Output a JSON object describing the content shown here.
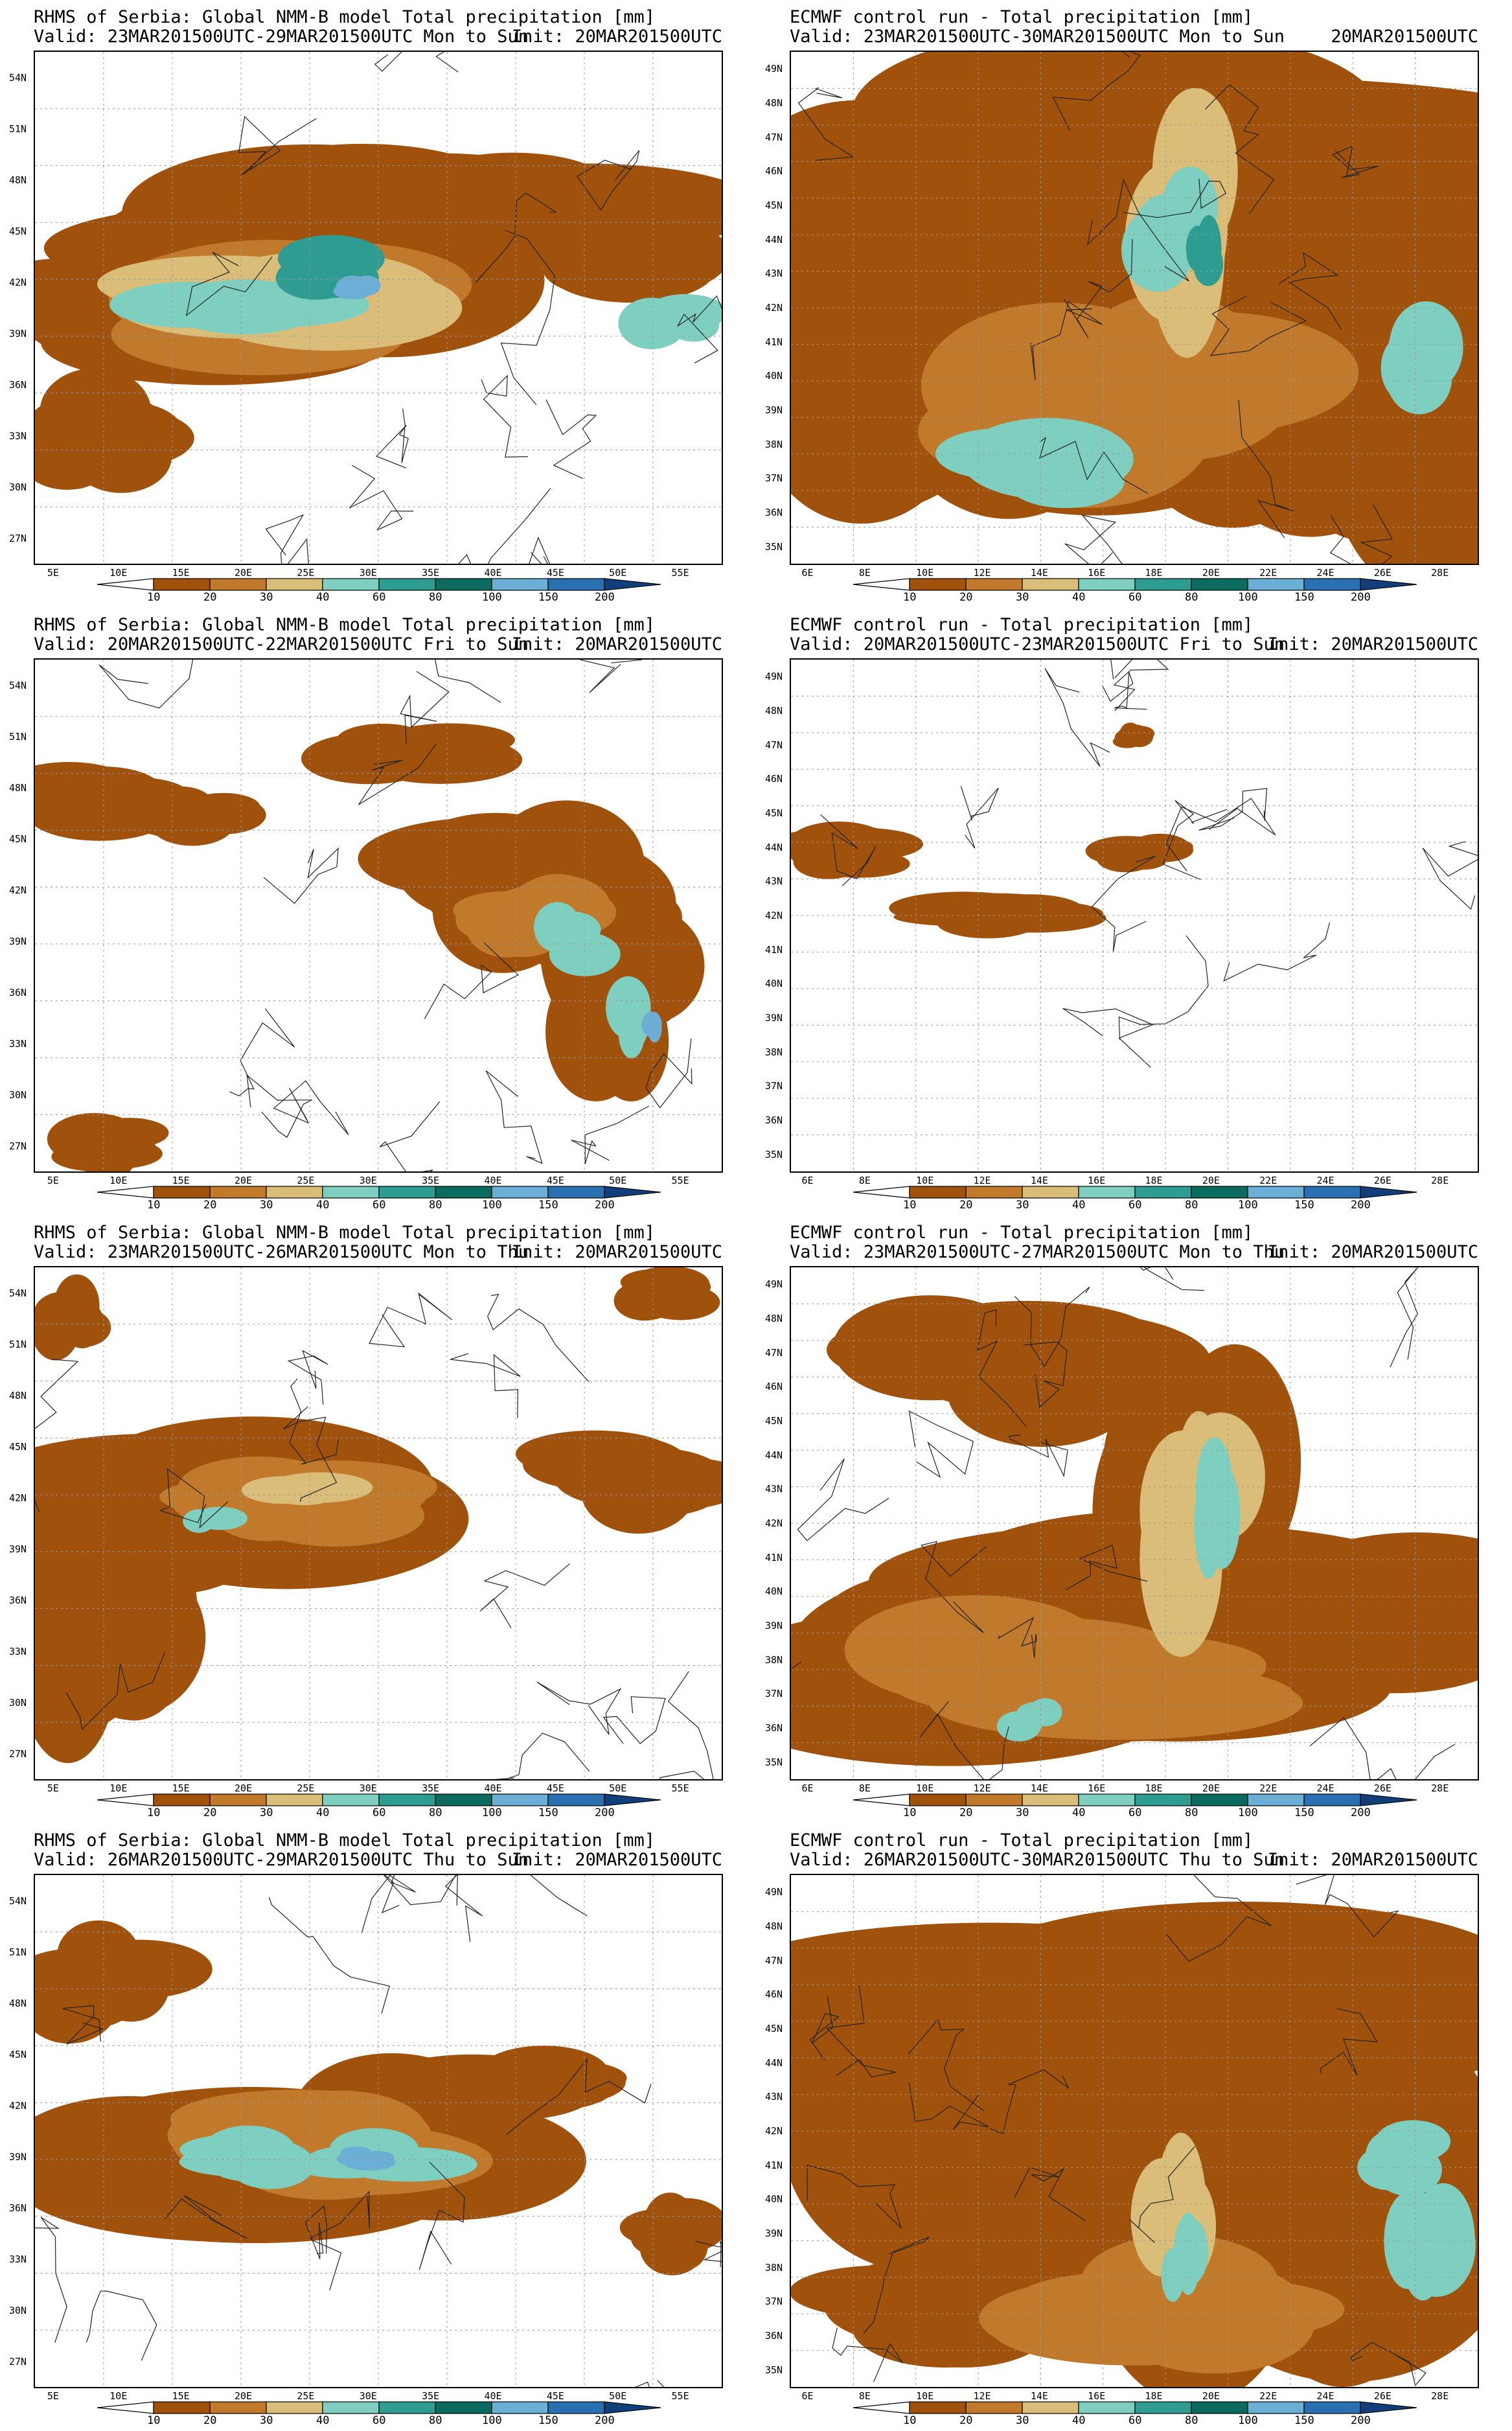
{
  "legend": {
    "levels": [
      "10",
      "20",
      "30",
      "40",
      "60",
      "80",
      "100",
      "150",
      "200"
    ],
    "colors": [
      "#ffffff",
      "#a0520d",
      "#c17a2b",
      "#d9bd78",
      "#7fcfc0",
      "#2e9c90",
      "#0a6b5e",
      "#6baed6",
      "#2a6fb0",
      "#103f7a"
    ]
  },
  "panels": [
    {
      "title": "RHMS of Serbia: Global NMM-B model Total precipitation [mm]",
      "valid": "Valid: 23MAR201500UTC-29MAR201500UTC Mon to Sun",
      "init": "Init: 20MAR201500UTC",
      "lat_labels": [
        "54N",
        "51N",
        "48N",
        "45N",
        "42N",
        "39N",
        "36N",
        "33N",
        "30N",
        "27N"
      ],
      "lon_labels": [
        "5E",
        "10E",
        "15E",
        "20E",
        "25E",
        "30E",
        "35E",
        "40E",
        "45E",
        "50E",
        "55E"
      ]
    },
    {
      "title": "ECMWF control run - Total precipitation [mm]",
      "valid": "Valid: 23MAR201500UTC-30MAR201500UTC Mon to Sun",
      "init": "20MAR201500UTC",
      "lat_labels": [
        "49N",
        "48N",
        "47N",
        "46N",
        "45N",
        "44N",
        "43N",
        "42N",
        "41N",
        "40N",
        "39N",
        "38N",
        "37N",
        "36N",
        "35N"
      ],
      "lon_labels": [
        "6E",
        "8E",
        "10E",
        "12E",
        "14E",
        "16E",
        "18E",
        "20E",
        "22E",
        "24E",
        "26E",
        "28E"
      ]
    },
    {
      "title": "RHMS of Serbia: Global NMM-B model Total precipitation [mm]",
      "valid": "Valid: 20MAR201500UTC-22MAR201500UTC Fri to Sun",
      "init": "Init: 20MAR201500UTC",
      "lat_labels": [
        "54N",
        "51N",
        "48N",
        "45N",
        "42N",
        "39N",
        "36N",
        "33N",
        "30N",
        "27N"
      ],
      "lon_labels": [
        "5E",
        "10E",
        "15E",
        "20E",
        "25E",
        "30E",
        "35E",
        "40E",
        "45E",
        "50E",
        "55E"
      ]
    },
    {
      "title": "ECMWF control run - Total precipitation [mm]",
      "valid": "Valid: 20MAR201500UTC-23MAR201500UTC Fri to Sun",
      "init": "Init: 20MAR201500UTC",
      "lat_labels": [
        "49N",
        "48N",
        "47N",
        "46N",
        "45N",
        "44N",
        "43N",
        "42N",
        "41N",
        "40N",
        "39N",
        "38N",
        "37N",
        "36N",
        "35N"
      ],
      "lon_labels": [
        "6E",
        "8E",
        "10E",
        "12E",
        "14E",
        "16E",
        "18E",
        "20E",
        "22E",
        "24E",
        "26E",
        "28E"
      ]
    },
    {
      "title": "RHMS of Serbia: Global NMM-B model Total precipitation [mm]",
      "valid": "Valid: 23MAR201500UTC-26MAR201500UTC Mon to Thu",
      "init": "Init: 20MAR201500UTC",
      "lat_labels": [
        "54N",
        "51N",
        "48N",
        "45N",
        "42N",
        "39N",
        "36N",
        "33N",
        "30N",
        "27N"
      ],
      "lon_labels": [
        "5E",
        "10E",
        "15E",
        "20E",
        "25E",
        "30E",
        "35E",
        "40E",
        "45E",
        "50E",
        "55E"
      ]
    },
    {
      "title": "ECMWF control run - Total precipitation [mm]",
      "valid": "Valid: 23MAR201500UTC-27MAR201500UTC Mon to Thu",
      "init": "Init: 20MAR201500UTC",
      "lat_labels": [
        "49N",
        "48N",
        "47N",
        "46N",
        "45N",
        "44N",
        "43N",
        "42N",
        "41N",
        "40N",
        "39N",
        "38N",
        "37N",
        "36N",
        "35N"
      ],
      "lon_labels": [
        "6E",
        "8E",
        "10E",
        "12E",
        "14E",
        "16E",
        "18E",
        "20E",
        "22E",
        "24E",
        "26E",
        "28E"
      ]
    },
    {
      "title": "RHMS of Serbia: Global NMM-B model Total precipitation [mm]",
      "valid": "Valid: 26MAR201500UTC-29MAR201500UTC Thu to Sun",
      "init": "Init: 20MAR201500UTC",
      "lat_labels": [
        "54N",
        "51N",
        "48N",
        "45N",
        "42N",
        "39N",
        "36N",
        "33N",
        "30N",
        "27N"
      ],
      "lon_labels": [
        "5E",
        "10E",
        "15E",
        "20E",
        "25E",
        "30E",
        "35E",
        "40E",
        "45E",
        "50E",
        "55E"
      ]
    },
    {
      "title": "ECMWF control run - Total precipitation [mm]",
      "valid": "Valid: 26MAR201500UTC-30MAR201500UTC Thu to Sun",
      "init": "Init: 20MAR201500UTC",
      "lat_labels": [
        "49N",
        "48N",
        "47N",
        "46N",
        "45N",
        "44N",
        "43N",
        "42N",
        "41N",
        "40N",
        "39N",
        "38N",
        "37N",
        "36N",
        "35N"
      ],
      "lon_labels": [
        "6E",
        "8E",
        "10E",
        "12E",
        "14E",
        "16E",
        "18E",
        "20E",
        "22E",
        "24E",
        "26E",
        "28E"
      ]
    }
  ]
}
